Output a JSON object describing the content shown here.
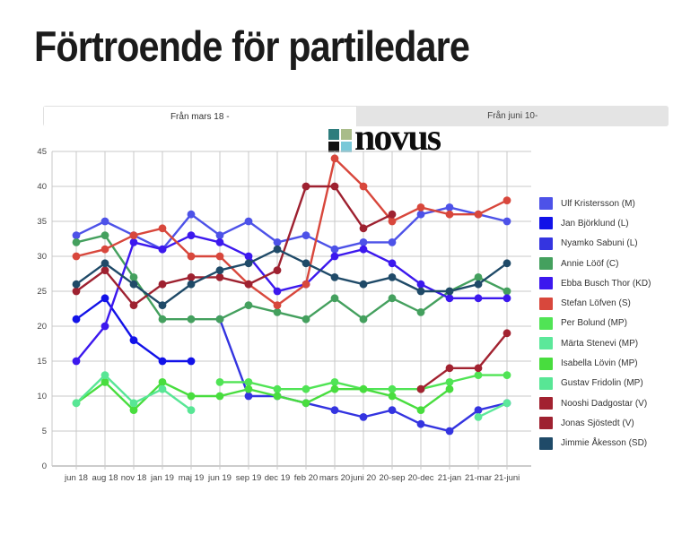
{
  "page": {
    "title": "Förtroende för partiledare"
  },
  "tabs": [
    {
      "label": "Från mars 18 -",
      "active": true
    },
    {
      "label": "Från juni 10-",
      "active": false
    }
  ],
  "logo": {
    "text": "novus",
    "square_colors": [
      "#2e7d7d",
      "#a9bc8a",
      "#111111",
      "#79c8d8"
    ]
  },
  "chart_data": {
    "type": "line",
    "title": "",
    "xlabel": "",
    "ylabel": "",
    "ylim": [
      0,
      45
    ],
    "ytick_step": 5,
    "grid": true,
    "legend_position": "right",
    "categories": [
      "jun 18",
      "aug 18",
      "nov 18",
      "jan 19",
      "maj 19",
      "jun 19",
      "sep 19",
      "dec 19",
      "feb 20",
      "mars 20",
      "juni 20",
      "20-sep",
      "20-dec",
      "21-jan",
      "21-mar",
      "21-juni"
    ],
    "series": [
      {
        "name": "Ulf Kristersson (M)",
        "color": "#4d52e8",
        "values": [
          33,
          35,
          33,
          31,
          36,
          33,
          35,
          32,
          33,
          31,
          32,
          32,
          36,
          37,
          36,
          35
        ]
      },
      {
        "name": "Jan Björklund (L)",
        "color": "#1212e8",
        "values": [
          21,
          24,
          18,
          15,
          15,
          null,
          null,
          null,
          null,
          null,
          null,
          null,
          null,
          null,
          null,
          null
        ]
      },
      {
        "name": "Nyamko Sabuni (L)",
        "color": "#3434e0",
        "values": [
          null,
          null,
          null,
          null,
          null,
          21,
          10,
          10,
          9,
          8,
          7,
          8,
          6,
          5,
          8,
          9
        ]
      },
      {
        "name": "Annie Lööf (C)",
        "color": "#44a05e",
        "values": [
          32,
          33,
          27,
          21,
          21,
          21,
          23,
          22,
          21,
          24,
          21,
          24,
          22,
          25,
          27,
          25
        ]
      },
      {
        "name": "Ebba Busch Thor (KD)",
        "color": "#3c18ee",
        "values": [
          15,
          20,
          32,
          31,
          33,
          32,
          30,
          25,
          26,
          30,
          31,
          29,
          26,
          24,
          24,
          24
        ]
      },
      {
        "name": "Stefan Löfven (S)",
        "color": "#d8473c",
        "values": [
          30,
          31,
          33,
          34,
          30,
          30,
          26,
          23,
          26,
          44,
          40,
          35,
          37,
          36,
          36,
          38
        ]
      },
      {
        "name": "Per Bolund (MP)",
        "color": "#50e455",
        "values": [
          null,
          null,
          null,
          null,
          null,
          12,
          12,
          11,
          11,
          12,
          11,
          11,
          11,
          12,
          13,
          13
        ]
      },
      {
        "name": "Märta Stenevi (MP)",
        "color": "#5ce89a",
        "values": [
          null,
          null,
          null,
          null,
          null,
          null,
          null,
          null,
          null,
          null,
          null,
          null,
          null,
          null,
          7,
          9
        ]
      },
      {
        "name": "Isabella Lövin (MP)",
        "color": "#48dd3e",
        "values": [
          9,
          12,
          8,
          12,
          10,
          10,
          11,
          10,
          9,
          11,
          11,
          10,
          8,
          11,
          null,
          null
        ]
      },
      {
        "name": "Gustav Fridolin (MP)",
        "color": "#58e695",
        "values": [
          9,
          13,
          9,
          11,
          8,
          null,
          null,
          null,
          null,
          null,
          null,
          null,
          null,
          null,
          null,
          null
        ]
      },
      {
        "name": "Nooshi Dadgostar (V)",
        "color": "#a22230",
        "values": [
          null,
          null,
          null,
          null,
          null,
          null,
          null,
          null,
          null,
          null,
          null,
          null,
          11,
          14,
          14,
          19
        ]
      },
      {
        "name": "Jonas Sjöstedt (V)",
        "color": "#9e2130",
        "values": [
          25,
          28,
          23,
          26,
          27,
          27,
          26,
          28,
          40,
          40,
          34,
          36,
          null,
          null,
          null,
          null
        ]
      },
      {
        "name": "Jimmie Åkesson (SD)",
        "color": "#1f4a68",
        "values": [
          26,
          29,
          26,
          23,
          26,
          28,
          29,
          31,
          29,
          27,
          26,
          27,
          25,
          25,
          26,
          29
        ]
      }
    ]
  }
}
